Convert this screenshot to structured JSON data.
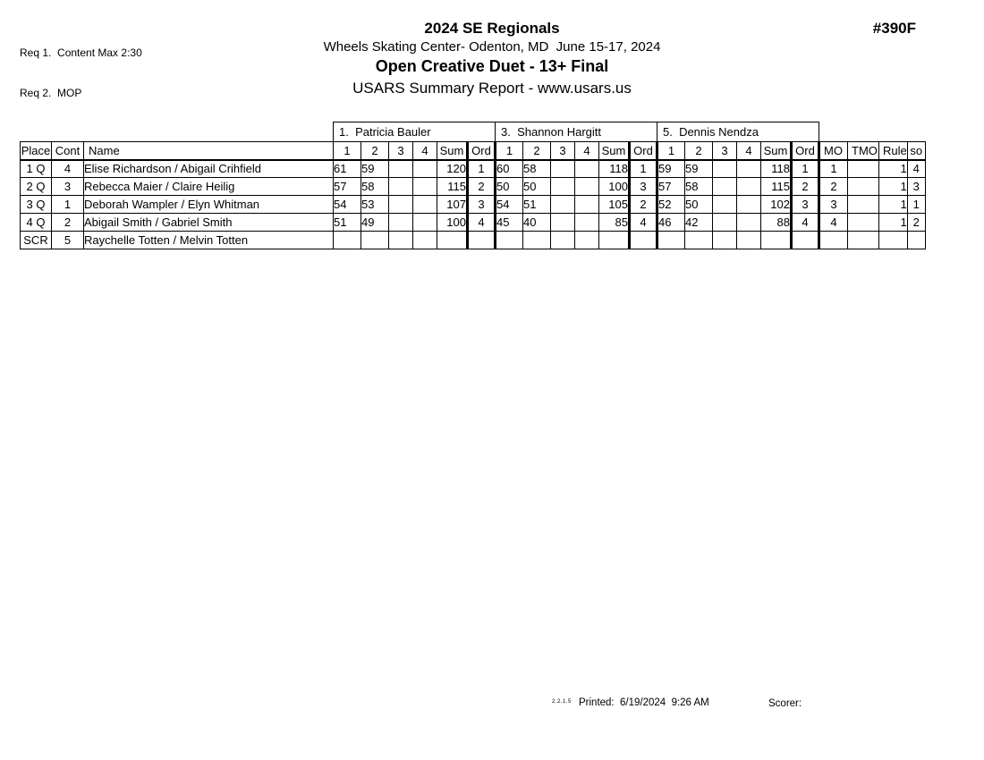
{
  "header": {
    "req1": "Req 1.  Content Max 2:30",
    "req2": "Req 2.  MOP",
    "title": "2024 SE Regionals",
    "venue": "Wheels Skating Center- Odenton, MD  June 15-17, 2024",
    "event": "Open Creative Duet - 13+ Final",
    "report": "USARS Summary Report - www.usars.us",
    "event_number": "#390F"
  },
  "table": {
    "judges": [
      "1.  Patricia Bauler",
      "3.  Shannon Hargitt",
      "5.  Dennis Nendza"
    ],
    "fixed_headers": {
      "place": "Place",
      "cont": "Cont",
      "name": "Name",
      "mo": "MO",
      "tmo": "TMO",
      "rule": "Rule",
      "so": "so"
    },
    "score_headers": [
      "1",
      "2",
      "3",
      "4",
      "Sum",
      "Ord"
    ],
    "rows": [
      {
        "place": "1 Q",
        "cont": "4",
        "name": "Elise Richardson / Abigail Crihfield",
        "emphasis": true,
        "judges": [
          {
            "s1": "61",
            "s2": "59",
            "s3": "",
            "s4": "",
            "sum": "120",
            "ord": "1"
          },
          {
            "s1": "60",
            "s2": "58",
            "s3": "",
            "s4": "",
            "sum": "118",
            "ord": "1"
          },
          {
            "s1": "59",
            "s2": "59",
            "s3": "",
            "s4": "",
            "sum": "118",
            "ord": "1"
          }
        ],
        "mo": "1",
        "tmo": "",
        "rule": "1",
        "so": "4"
      },
      {
        "place": "2 Q",
        "cont": "3",
        "name": "Rebecca Maier / Claire Heilig",
        "emphasis": true,
        "judges": [
          {
            "s1": "57",
            "s2": "58",
            "s3": "",
            "s4": "",
            "sum": "115",
            "ord": "2"
          },
          {
            "s1": "50",
            "s2": "50",
            "s3": "",
            "s4": "",
            "sum": "100",
            "ord": "3"
          },
          {
            "s1": "57",
            "s2": "58",
            "s3": "",
            "s4": "",
            "sum": "115",
            "ord": "2"
          }
        ],
        "mo": "2",
        "tmo": "",
        "rule": "1",
        "so": "3"
      },
      {
        "place": "3 Q",
        "cont": "1",
        "name": "Deborah Wampler / Elyn Whitman",
        "emphasis": true,
        "judges": [
          {
            "s1": "54",
            "s2": "53",
            "s3": "",
            "s4": "",
            "sum": "107",
            "ord": "3"
          },
          {
            "s1": "54",
            "s2": "51",
            "s3": "",
            "s4": "",
            "sum": "105",
            "ord": "2"
          },
          {
            "s1": "52",
            "s2": "50",
            "s3": "",
            "s4": "",
            "sum": "102",
            "ord": "3"
          }
        ],
        "mo": "3",
        "tmo": "",
        "rule": "1",
        "so": "1"
      },
      {
        "place": "4 Q",
        "cont": "2",
        "name": "Abigail Smith / Gabriel Smith",
        "emphasis": true,
        "judges": [
          {
            "s1": "51",
            "s2": "49",
            "s3": "",
            "s4": "",
            "sum": "100",
            "ord": "4"
          },
          {
            "s1": "45",
            "s2": "40",
            "s3": "",
            "s4": "",
            "sum": "85",
            "ord": "4"
          },
          {
            "s1": "46",
            "s2": "42",
            "s3": "",
            "s4": "",
            "sum": "88",
            "ord": "4"
          }
        ],
        "mo": "4",
        "tmo": "",
        "rule": "1",
        "so": "2"
      },
      {
        "place": "SCR",
        "cont": "5",
        "name": "Raychelle Totten / Melvin Totten",
        "emphasis": false,
        "judges": [
          {
            "s1": "",
            "s2": "",
            "s3": "",
            "s4": "",
            "sum": "",
            "ord": ""
          },
          {
            "s1": "",
            "s2": "",
            "s3": "",
            "s4": "",
            "sum": "",
            "ord": ""
          },
          {
            "s1": "",
            "s2": "",
            "s3": "",
            "s4": "",
            "sum": "",
            "ord": ""
          }
        ],
        "mo": "",
        "tmo": "",
        "rule": "",
        "so": ""
      }
    ]
  },
  "footer": {
    "version": "2.2.1.5",
    "printed": "Printed:  6/19/2024  9:26 AM",
    "scorer": "Scorer:"
  },
  "colors": {
    "text": "#000000",
    "background": "#ffffff",
    "border": "#000000"
  }
}
